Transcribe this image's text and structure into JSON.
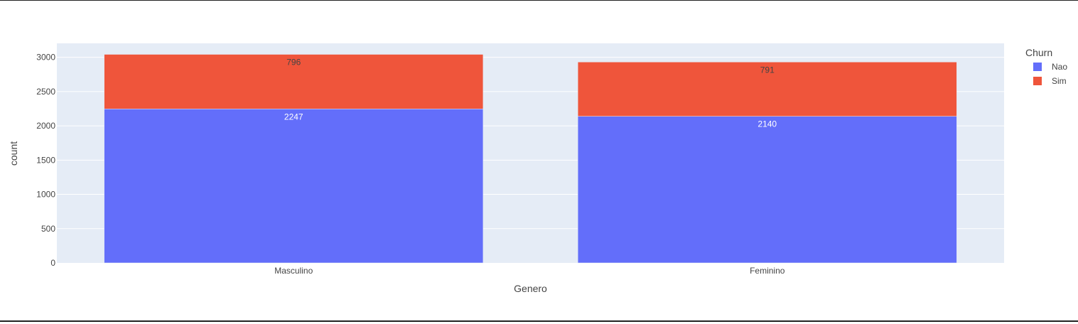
{
  "chart_data": {
    "type": "bar",
    "barmode": "stack",
    "categories": [
      "Masculino",
      "Feminino"
    ],
    "series": [
      {
        "name": "Nao",
        "values": [
          2247,
          2140
        ],
        "color": "#636efa",
        "label_color": "#ffffff"
      },
      {
        "name": "Sim",
        "values": [
          796,
          791
        ],
        "color": "#ef553b",
        "label_color": "#444444"
      }
    ],
    "title": "",
    "xlabel": "Genero",
    "ylabel": "count",
    "ylim": [
      0,
      3204
    ],
    "yticks": [
      0,
      500,
      1000,
      1500,
      2000,
      2500,
      3000
    ],
    "grid": true,
    "legend": {
      "title": "Churn",
      "position": "top-right"
    },
    "colors": {
      "plot_bg": "#e5ecf6",
      "grid": "#ffffff",
      "text": "#444444"
    }
  }
}
